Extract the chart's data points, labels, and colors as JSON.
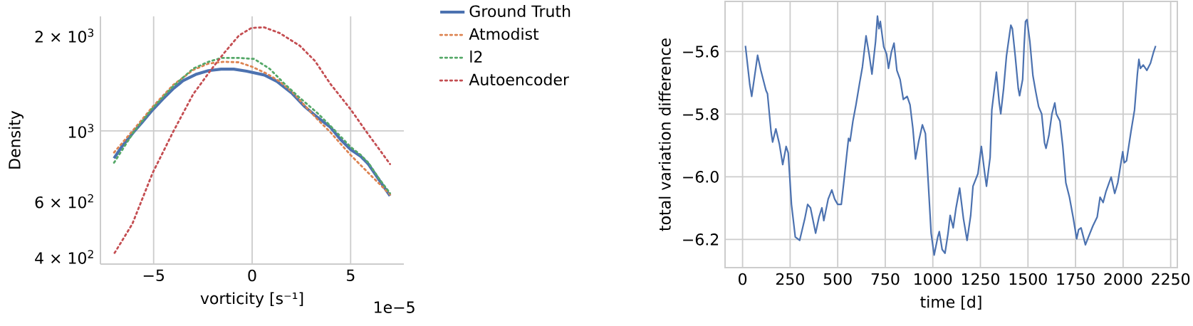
{
  "chart_data": [
    {
      "type": "line",
      "xlabel": "vorticity [s⁻¹]",
      "ylabel": "Density",
      "log": "y",
      "xlim": [
        -7.7,
        7.7
      ],
      "ylim": [
        380,
        2300
      ],
      "xticks": [
        {
          "value": -5,
          "label": "−5"
        },
        0,
        5
      ],
      "yticks": [
        {
          "value": 400,
          "label": "4 × 10$^{2}$"
        },
        {
          "value": 600,
          "label": "6 × 10$^{2}$"
        },
        {
          "value": 1000,
          "label": "10$^{3}$"
        },
        {
          "value": 2000,
          "label": "2 × 10$^{3}$"
        }
      ],
      "grid": true,
      "legend": "top right",
      "annotations": [
        "1e−5"
      ],
      "series": [
        {
          "name": "Ground Truth",
          "color": "#4c72b0",
          "line_style": "solid",
          "x": [
            -7.01,
            -6.6,
            -6.02,
            -5.57,
            -5.05,
            -4.54,
            -4.02,
            -3.51,
            -2.86,
            -2.22,
            -1.57,
            -0.93,
            -0.28,
            0.62,
            1.26,
            2.04,
            2.68,
            3.32,
            3.97,
            4.48,
            5.0,
            5.52,
            5.9,
            6.29,
            7.0
          ],
          "values": [
            820,
            895,
            991,
            1067,
            1166,
            1260,
            1357,
            1440,
            1508,
            1550,
            1567,
            1567,
            1544,
            1502,
            1434,
            1312,
            1192,
            1103,
            1028,
            941,
            874,
            831,
            786,
            724,
            624
          ]
        },
        {
          "name": "Atmodist",
          "color": "#dd8452",
          "line_style": "dotted",
          "x": [
            -7.01,
            -6.02,
            -5.05,
            -4.02,
            -2.99,
            -2.22,
            -1.44,
            -0.67,
            -0.03,
            0.75,
            1.39,
            2.04,
            3.32,
            3.97,
            5.0,
            5.9,
            7.0
          ],
          "values": [
            855,
            1009,
            1192,
            1395,
            1558,
            1632,
            1653,
            1647,
            1597,
            1516,
            1434,
            1327,
            1087,
            991,
            839,
            737,
            630
          ]
        },
        {
          "name": "l2",
          "color": "#55a868",
          "line_style": "dotted",
          "x": [
            -7.01,
            -6.02,
            -5.05,
            -4.02,
            -2.99,
            -2.22,
            -1.57,
            -0.67,
            0.1,
            0.88,
            1.65,
            2.42,
            3.32,
            3.97,
            5.0,
            5.52,
            5.9,
            6.42,
            7.0
          ],
          "values": [
            794,
            991,
            1181,
            1382,
            1573,
            1653,
            1700,
            1700,
            1688,
            1573,
            1408,
            1272,
            1138,
            1038,
            890,
            839,
            794,
            710,
            636
          ]
        },
        {
          "name": "Autoencoder",
          "color": "#c44e52",
          "line_style": "dotted",
          "x": [
            -6.98,
            -6.08,
            -5.05,
            -4.02,
            -2.99,
            -2.09,
            -1.44,
            -0.67,
            -0.03,
            0.62,
            1.39,
            2.42,
            3.19,
            3.97,
            5.0,
            5.77,
            7.0
          ],
          "values": [
            412,
            509,
            737,
            991,
            1307,
            1558,
            1757,
            2001,
            2115,
            2123,
            2038,
            1858,
            1663,
            1408,
            1170,
            1000,
            786
          ]
        }
      ]
    },
    {
      "type": "line",
      "xlabel": "time [d]",
      "ylabel": "total variation difference",
      "xlim": [
        -92,
        2285
      ],
      "ylim": [
        -6.29,
        -5.44
      ],
      "xticks": [
        0,
        250,
        500,
        750,
        1000,
        1250,
        1500,
        1750,
        2000,
        2250
      ],
      "yticks": [
        {
          "value": -6.2,
          "label": "−6.2"
        },
        {
          "value": -6.0,
          "label": "−6.0"
        },
        {
          "value": -5.8,
          "label": "−5.8"
        },
        {
          "value": -5.6,
          "label": "−5.6"
        }
      ],
      "grid": true,
      "series": [
        {
          "color": "#4c72b0",
          "line_style": "solid",
          "x": [
            15,
            38,
            48,
            79,
            96,
            123,
            131,
            150,
            158,
            175,
            194,
            211,
            229,
            240,
            257,
            277,
            300,
            327,
            342,
            357,
            384,
            402,
            417,
            427,
            450,
            469,
            484,
            500,
            519,
            534,
            546,
            557,
            565,
            580,
            596,
            615,
            630,
            649,
            665,
            680,
            699,
            709,
            717,
            724,
            742,
            757,
            767,
            782,
            796,
            811,
            828,
            845,
            865,
            880,
            895,
            909,
            926,
            945,
            961,
            976,
            991,
            1007,
            1026,
            1034,
            1049,
            1064,
            1080,
            1091,
            1107,
            1122,
            1141,
            1161,
            1180,
            1199,
            1211,
            1237,
            1255,
            1274,
            1282,
            1301,
            1310,
            1334,
            1349,
            1357,
            1372,
            1387,
            1403,
            1410,
            1418,
            1433,
            1449,
            1456,
            1472,
            1480,
            1487,
            1495,
            1510,
            1526,
            1541,
            1556,
            1572,
            1587,
            1595,
            1610,
            1626,
            1641,
            1649,
            1668,
            1683,
            1699,
            1718,
            1737,
            1756,
            1766,
            1779,
            1802,
            1818,
            1841,
            1864,
            1879,
            1895,
            1910,
            1937,
            1956,
            1972,
            1998,
            2006,
            2018,
            2041,
            2060,
            2075,
            2083,
            2091,
            2106,
            2125,
            2144,
            2160,
            2171
          ],
          "values": [
            -5.582,
            -5.706,
            -5.743,
            -5.612,
            -5.66,
            -5.724,
            -5.735,
            -5.857,
            -5.889,
            -5.847,
            -5.897,
            -5.961,
            -5.903,
            -5.924,
            -6.088,
            -6.192,
            -6.203,
            -6.134,
            -6.088,
            -6.099,
            -6.18,
            -6.128,
            -6.099,
            -6.14,
            -6.071,
            -6.042,
            -6.071,
            -6.088,
            -6.088,
            -6.007,
            -5.938,
            -5.877,
            -5.886,
            -5.822,
            -5.77,
            -5.701,
            -5.649,
            -5.55,
            -5.608,
            -5.672,
            -5.568,
            -5.487,
            -5.527,
            -5.504,
            -5.585,
            -5.608,
            -5.654,
            -5.602,
            -5.573,
            -5.66,
            -5.689,
            -5.753,
            -5.743,
            -5.77,
            -5.845,
            -5.943,
            -5.886,
            -5.834,
            -5.862,
            -6.019,
            -6.18,
            -6.25,
            -6.192,
            -6.175,
            -6.232,
            -6.244,
            -6.18,
            -6.123,
            -6.163,
            -6.099,
            -6.036,
            -6.134,
            -6.203,
            -6.123,
            -6.03,
            -5.99,
            -5.903,
            -5.995,
            -6.03,
            -5.938,
            -5.787,
            -5.666,
            -5.764,
            -5.799,
            -5.718,
            -5.614,
            -5.545,
            -5.516,
            -5.527,
            -5.614,
            -5.718,
            -5.741,
            -5.689,
            -5.579,
            -5.504,
            -5.498,
            -5.568,
            -5.677,
            -5.729,
            -5.776,
            -5.799,
            -5.891,
            -5.909,
            -5.868,
            -5.799,
            -5.764,
            -5.799,
            -5.822,
            -5.903,
            -6.019,
            -6.065,
            -6.128,
            -6.198,
            -6.169,
            -6.163,
            -6.217,
            -6.192,
            -6.157,
            -6.128,
            -6.065,
            -6.082,
            -6.047,
            -6.001,
            -6.053,
            -6.019,
            -5.92,
            -5.955,
            -5.949,
            -5.857,
            -5.787,
            -5.672,
            -5.625,
            -5.654,
            -5.643,
            -5.66,
            -5.637,
            -5.602,
            -5.582
          ]
        }
      ]
    }
  ]
}
